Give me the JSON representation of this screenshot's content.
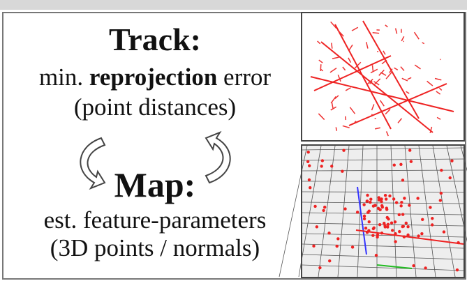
{
  "track": {
    "title": "Track:",
    "line1": [
      "min.",
      "reprojection",
      "error"
    ],
    "line2": "(point distances)"
  },
  "map": {
    "title": "Map:",
    "line1": "est. feature-parameters",
    "line2": "(3D points / normals)"
  }
}
